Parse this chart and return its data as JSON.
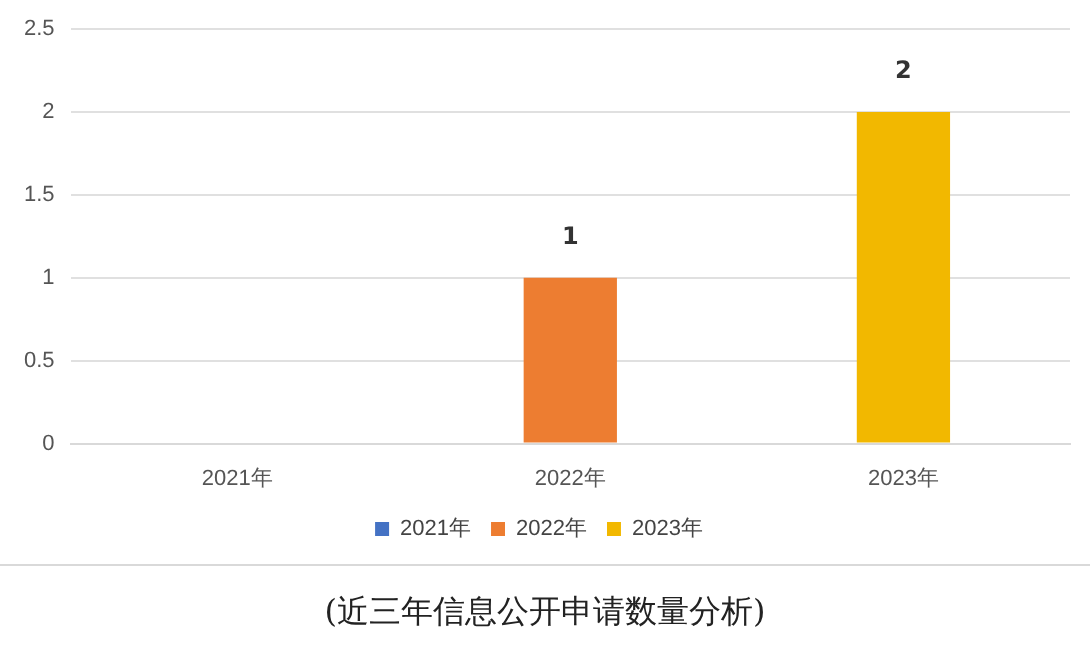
{
  "chart_data": {
    "type": "bar",
    "title": "(近三年信息公开申请数量分析)",
    "categories": [
      "2021年",
      "2022年",
      "2023年"
    ],
    "series": [
      {
        "name": "2021年",
        "color": "#4472c4",
        "values": [
          0,
          null,
          null
        ]
      },
      {
        "name": "2022年",
        "color": "#ed7d31",
        "values": [
          null,
          1,
          null
        ],
        "value_labels": [
          null,
          "1",
          null
        ]
      },
      {
        "name": "2023年",
        "color": "#f2b800",
        "values": [
          null,
          null,
          2
        ],
        "value_labels": [
          null,
          null,
          "2"
        ]
      }
    ],
    "ylim": [
      0,
      2.5
    ],
    "yticks": [
      0,
      0.5,
      1,
      1.5,
      2,
      2.5
    ],
    "grid": "y",
    "legend": "bottom"
  }
}
